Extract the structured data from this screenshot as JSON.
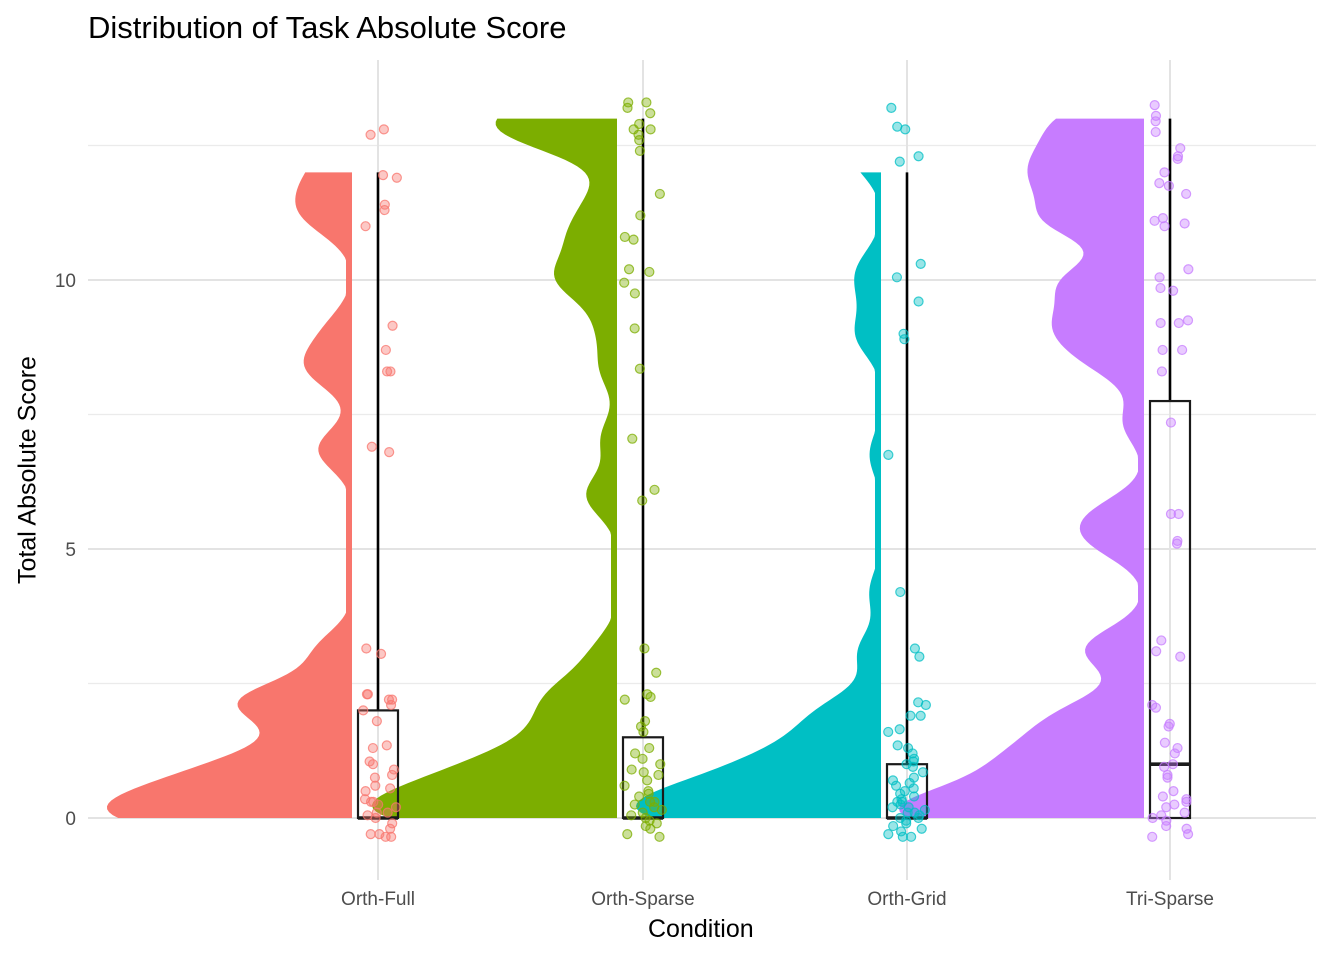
{
  "chart_data": {
    "type": "raincloud",
    "title": "Distribution of Task Absolute Score",
    "xlabel": "Condition",
    "ylabel": "Total Absolute Score",
    "ylim": [
      -1.0,
      14.0
    ],
    "y_ticks": [
      0,
      5,
      10
    ],
    "grid": true,
    "legend": "none",
    "categories": [
      "Orth-Full",
      "Orth-Sparse",
      "Orth-Grid",
      "Tri-Sparse"
    ],
    "series": [
      {
        "category": "Orth-Full",
        "color": "#F8766D",
        "box": {
          "q1": 0.0,
          "median": 0.0,
          "q3": 2.0,
          "whisker_low": 0.0,
          "whisker_high": 12.0
        },
        "points": [
          12.8,
          12.7,
          11.95,
          11.9,
          11.4,
          11.3,
          11.0,
          9.15,
          8.7,
          8.3,
          8.3,
          6.9,
          6.8,
          3.15,
          3.05,
          2.3,
          2.3,
          2.2,
          2.2,
          2.1,
          2.0,
          1.8,
          1.35,
          1.3,
          1.05,
          1.0,
          0.9,
          0.8,
          0.75,
          0.6,
          0.55,
          0.5,
          0.35,
          0.3,
          0.3,
          0.25,
          0.2,
          0.1,
          0.1,
          0.05,
          0.0,
          -0.1,
          -0.2,
          -0.3,
          -0.3,
          -0.35,
          -0.35
        ]
      },
      {
        "category": "Orth-Sparse",
        "color": "#7CAE00",
        "box": {
          "q1": 0.0,
          "median": 0.0,
          "q3": 1.5,
          "whisker_low": 0.0,
          "whisker_high": 13.0
        },
        "points": [
          13.3,
          13.3,
          13.2,
          13.1,
          12.9,
          12.8,
          12.8,
          12.7,
          12.6,
          12.4,
          11.6,
          11.2,
          10.8,
          10.75,
          10.2,
          10.15,
          9.95,
          9.75,
          9.1,
          8.35,
          7.05,
          6.1,
          5.9,
          3.15,
          2.7,
          2.3,
          2.25,
          2.2,
          1.8,
          1.7,
          1.6,
          1.3,
          1.2,
          1.1,
          1.0,
          0.9,
          0.85,
          0.8,
          0.7,
          0.6,
          0.5,
          0.45,
          0.4,
          0.3,
          0.3,
          0.25,
          0.2,
          0.15,
          0.1,
          0.05,
          0.0,
          -0.05,
          -0.1,
          -0.15,
          -0.2,
          -0.3,
          -0.35
        ]
      },
      {
        "category": "Orth-Grid",
        "color": "#00BFC4",
        "box": {
          "q1": 0.0,
          "median": 0.0,
          "q3": 1.0,
          "whisker_low": 0.0,
          "whisker_high": 12.0
        },
        "points": [
          13.2,
          12.85,
          12.8,
          12.3,
          12.2,
          10.3,
          10.05,
          9.6,
          9.0,
          8.9,
          6.75,
          4.2,
          3.15,
          3.0,
          2.15,
          2.1,
          1.9,
          1.9,
          1.65,
          1.6,
          1.35,
          1.3,
          1.2,
          1.1,
          1.05,
          1.0,
          0.95,
          0.85,
          0.75,
          0.7,
          0.65,
          0.6,
          0.55,
          0.5,
          0.45,
          0.4,
          0.35,
          0.3,
          0.3,
          0.25,
          0.2,
          0.2,
          0.15,
          0.1,
          0.1,
          0.05,
          0.0,
          0.0,
          -0.05,
          -0.1,
          -0.15,
          -0.2,
          -0.25,
          -0.3,
          -0.35,
          -0.35
        ]
      },
      {
        "category": "Tri-Sparse",
        "color": "#C77CFF",
        "box": {
          "q1": 0.0,
          "median": 1.0,
          "q3": 7.75,
          "whisker_low": 0.0,
          "whisker_high": 13.0
        },
        "points": [
          13.25,
          13.05,
          12.95,
          12.75,
          12.45,
          12.3,
          12.25,
          12.0,
          11.8,
          11.75,
          11.6,
          11.15,
          11.1,
          11.05,
          11.0,
          10.2,
          10.05,
          9.85,
          9.8,
          9.25,
          9.2,
          9.2,
          8.7,
          8.7,
          8.3,
          7.35,
          5.65,
          5.65,
          5.15,
          5.1,
          3.3,
          3.1,
          3.0,
          2.1,
          2.05,
          1.75,
          1.7,
          1.4,
          1.3,
          1.2,
          1.0,
          0.95,
          0.8,
          0.75,
          0.5,
          0.4,
          0.35,
          0.3,
          0.25,
          0.2,
          0.1,
          0.05,
          0.0,
          -0.05,
          -0.15,
          -0.2,
          -0.3,
          -0.35
        ]
      }
    ]
  }
}
